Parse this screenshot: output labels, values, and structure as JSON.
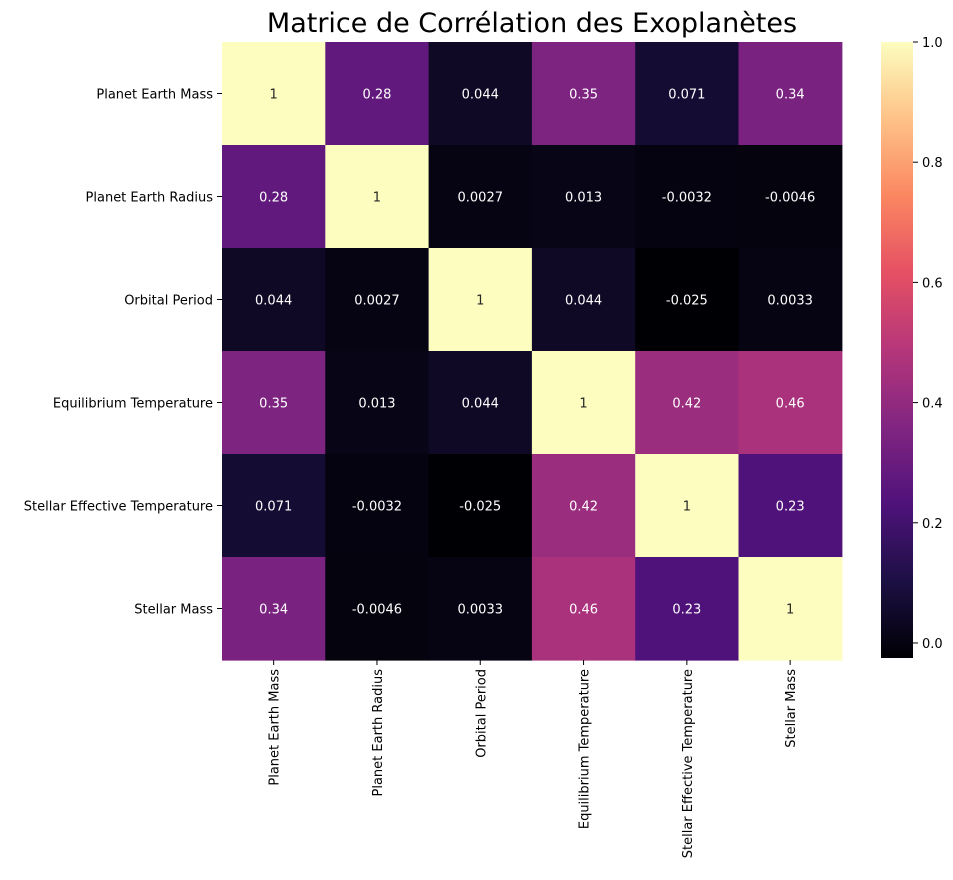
{
  "chart_data": {
    "type": "heatmap",
    "title": "Matrice de Corrélation des Exoplanètes",
    "colormap": "magma",
    "row_labels": [
      "Planet Earth Mass",
      "Planet Earth Radius",
      "Orbital Period",
      "Equilibrium Temperature",
      "Stellar Effective Temperature",
      "Stellar Mass"
    ],
    "col_labels": [
      "Planet Earth Mass",
      "Planet Earth Radius",
      "Orbital Period",
      "Equilibrium Temperature",
      "Stellar Effective Temperature",
      "Stellar Mass"
    ],
    "values": [
      [
        1,
        0.28,
        0.044,
        0.35,
        0.071,
        0.34
      ],
      [
        0.28,
        1,
        0.0027,
        0.013,
        -0.0032,
        -0.0046
      ],
      [
        0.044,
        0.0027,
        1,
        0.044,
        -0.025,
        0.0033
      ],
      [
        0.35,
        0.013,
        0.044,
        1,
        0.42,
        0.46
      ],
      [
        0.071,
        -0.0032,
        -0.025,
        0.42,
        1,
        0.23
      ],
      [
        0.34,
        -0.0046,
        0.0033,
        0.46,
        0.23,
        1
      ]
    ],
    "annotations": [
      [
        "1",
        "0.28",
        "0.044",
        "0.35",
        "0.071",
        "0.34"
      ],
      [
        "0.28",
        "1",
        "0.0027",
        "0.013",
        "-0.0032",
        "-0.0046"
      ],
      [
        "0.044",
        "0.0027",
        "1",
        "0.044",
        "-0.025",
        "0.0033"
      ],
      [
        "0.35",
        "0.013",
        "0.044",
        "1",
        "0.42",
        "0.46"
      ],
      [
        "0.071",
        "-0.0032",
        "-0.025",
        "0.42",
        "1",
        "0.23"
      ],
      [
        "0.34",
        "-0.0046",
        "0.0033",
        "0.46",
        "0.23",
        "1"
      ]
    ],
    "vmin": -0.025,
    "vmax": 1,
    "colorbar_ticks": [
      0.0,
      0.2,
      0.4,
      0.6,
      0.8,
      1.0
    ],
    "colorbar_tick_labels": [
      "0.0",
      "0.2",
      "0.4",
      "0.6",
      "0.8",
      "1.0"
    ]
  }
}
